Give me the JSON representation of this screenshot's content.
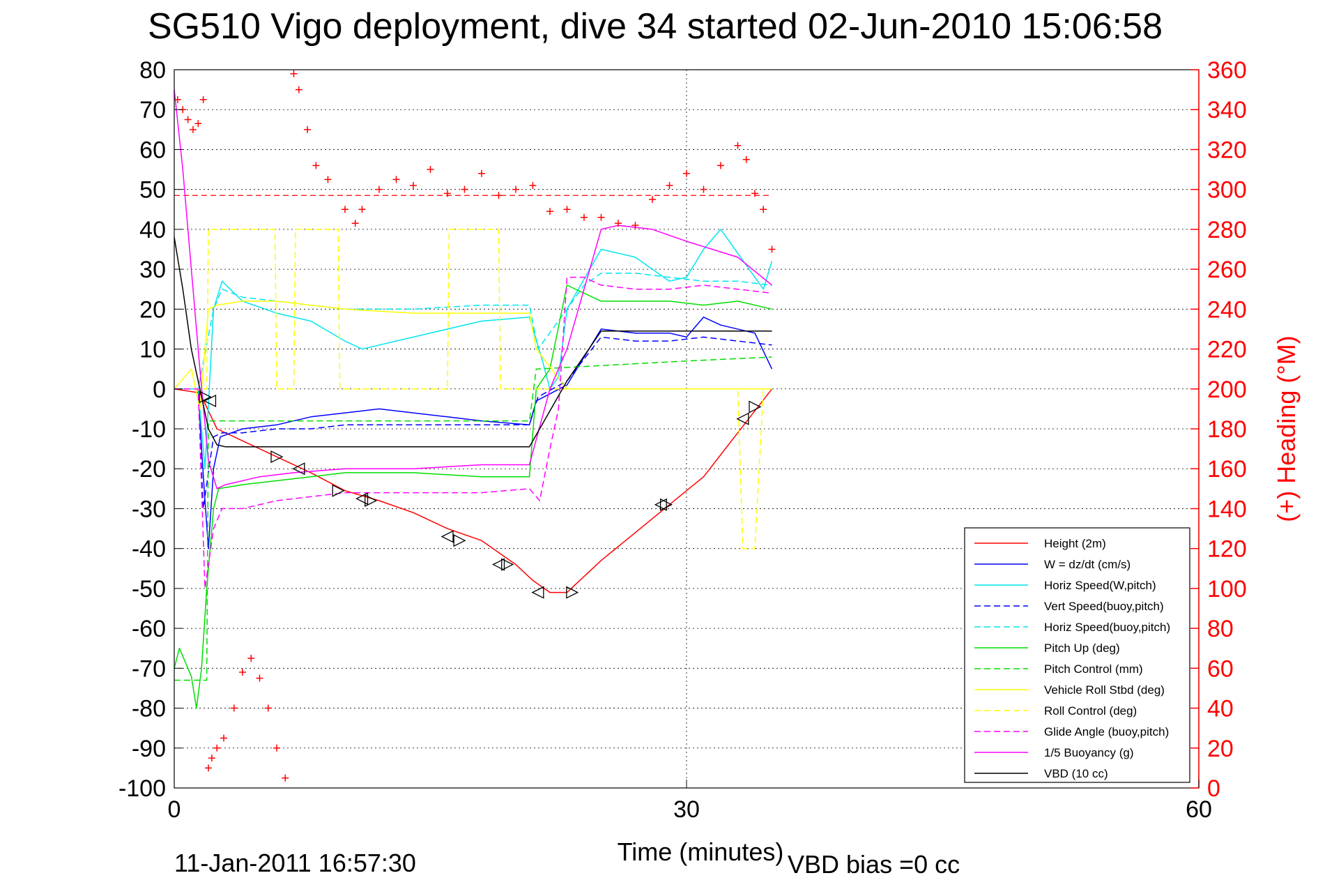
{
  "chart_data": {
    "type": "line",
    "title": "SG510 Vigo deployment, dive 34 started 02-Jun-2010 15:06:58",
    "xlabel": "Time (minutes)",
    "ylabel_right": "(+) Heading (°M)",
    "xlim": [
      0,
      60
    ],
    "ylim": [
      -100,
      80
    ],
    "ylim_right": [
      0,
      360
    ],
    "x_ticks": [
      "0",
      "30",
      "60"
    ],
    "y_ticks": [
      "80",
      "70",
      "60",
      "50",
      "40",
      "30",
      "20",
      "10",
      "0",
      "-10",
      "-20",
      "-30",
      "-40",
      "-50",
      "-60",
      "-70",
      "-80",
      "-90",
      "-100"
    ],
    "y_ticks_right": [
      "360",
      "340",
      "320",
      "300",
      "280",
      "260",
      "240",
      "220",
      "200",
      "180",
      "160",
      "140",
      "120",
      "100",
      "80",
      "60",
      "40",
      "20",
      "0"
    ],
    "grid": true,
    "legend_position": "lower-right",
    "footer_left": "11-Jan-2011 16:57:30",
    "footer_right": "VBD bias =0 cc",
    "heading_reference": 297,
    "series": [
      {
        "name": "Height (2m)",
        "color": "#ff0000",
        "style": "solid",
        "axis": "left",
        "x": [
          0,
          1.5,
          2.5,
          4,
          6,
          8,
          10,
          12,
          14,
          16,
          18,
          20,
          21,
          22,
          23,
          25,
          27,
          29,
          31,
          33,
          35
        ],
        "y": [
          0,
          -1,
          -10,
          -13,
          -17,
          -21,
          -25.5,
          -28,
          -31,
          -35,
          -38,
          -44,
          -48,
          -51,
          -51,
          -43,
          -36,
          -29,
          -22,
          -11,
          0
        ]
      },
      {
        "name": "W = dz/dt (cm/s)",
        "color": "#0000ff",
        "style": "solid",
        "axis": "left",
        "x": [
          0,
          1.4,
          1.6,
          1.8,
          2,
          2.3,
          2.7,
          4,
          6,
          8,
          10,
          12,
          14,
          16,
          18,
          20.8,
          21.2,
          23,
          24,
          25,
          27,
          29,
          30,
          31,
          32,
          34,
          35
        ],
        "y": [
          0,
          0,
          -15,
          -28,
          -40,
          -20,
          -12,
          -10,
          -9,
          -7,
          -6,
          -5,
          -6,
          -7,
          -8,
          -9,
          -3,
          1,
          8,
          15,
          14,
          14,
          13,
          18,
          16,
          14,
          5
        ]
      },
      {
        "name": "Horiz Speed(W,pitch)",
        "color": "#00e5ee",
        "style": "solid",
        "axis": "left",
        "x": [
          0,
          1.4,
          1.8,
          2.3,
          2.8,
          4,
          6,
          8,
          10,
          11,
          12,
          14,
          16,
          18,
          20.8,
          21.5,
          22,
          22.5,
          23,
          25,
          27,
          29,
          30,
          31,
          32,
          33,
          34.5,
          35
        ],
        "y": [
          0,
          0,
          -20,
          20,
          27,
          22,
          19,
          17,
          12,
          10,
          11,
          13,
          15,
          17,
          18,
          8,
          0,
          3,
          20,
          35,
          33,
          27,
          28,
          35,
          40,
          34,
          25,
          32
        ]
      },
      {
        "name": "Vert Speed(buoy,pitch)",
        "color": "#0000ff",
        "style": "dashed",
        "axis": "left",
        "x": [
          0,
          1.4,
          1.7,
          2.3,
          2.8,
          4,
          6,
          8,
          10,
          14,
          18,
          20.8,
          21.3,
          23,
          25,
          27,
          29,
          31,
          33,
          35
        ],
        "y": [
          0,
          0,
          -30,
          -12,
          -11,
          -11,
          -10,
          -10,
          -9,
          -9,
          -9,
          -9,
          -2,
          2,
          13,
          12,
          12,
          13,
          12,
          11
        ]
      },
      {
        "name": "Horiz Speed(buoy,pitch)",
        "color": "#00e5ee",
        "style": "dashed",
        "axis": "left",
        "x": [
          0,
          1.4,
          2.3,
          2.8,
          4,
          6,
          8,
          10,
          14,
          18,
          20.8,
          21.3,
          23,
          24,
          25,
          27,
          29,
          31,
          33,
          35
        ],
        "y": [
          0,
          0,
          20,
          25,
          23,
          22,
          21,
          20,
          20,
          21,
          21,
          10,
          20,
          26,
          29,
          29,
          28,
          27,
          27,
          26
        ]
      },
      {
        "name": "Pitch Up (deg)",
        "color": "#00dd00",
        "style": "solid",
        "axis": "left",
        "x": [
          0,
          0.3,
          1.0,
          1.3,
          1.6,
          1.9,
          2.3,
          2.6,
          4,
          6,
          8,
          10,
          12,
          14,
          18,
          20.8,
          21.2,
          22,
          23,
          25,
          27,
          29,
          31,
          33,
          35
        ],
        "y": [
          -70,
          -65,
          -72,
          -80,
          -70,
          -50,
          -30,
          -25,
          -24,
          -23,
          -22,
          -21,
          -21,
          -21,
          -22,
          -22,
          0,
          5,
          26,
          22,
          22,
          22,
          21,
          22,
          20
        ]
      },
      {
        "name": "Pitch Control (mm)",
        "color": "#00dd00",
        "style": "dashed",
        "axis": "left",
        "x": [
          0,
          1.5,
          1.9,
          2.0,
          20.8,
          21.2,
          30,
          35
        ],
        "y": [
          -73,
          -73,
          -73,
          -8,
          -8,
          5,
          7,
          8
        ]
      },
      {
        "name": "Vehicle Roll Stbd (deg)",
        "color": "#ffff00",
        "style": "solid",
        "axis": "left",
        "x": [
          0,
          1.0,
          1.5,
          2.0,
          2.5,
          4,
          6,
          8,
          10,
          14,
          18,
          20.8,
          21.2,
          23,
          25,
          27,
          29,
          31,
          33,
          35
        ],
        "y": [
          0,
          5,
          -5,
          20,
          21,
          22,
          22,
          21,
          20,
          19,
          19,
          19,
          10,
          0,
          0,
          0,
          0,
          0,
          0,
          0
        ]
      },
      {
        "name": "Roll Control (deg)",
        "color": "#ffff00",
        "style": "dashed",
        "axis": "left",
        "x": [
          0,
          1.9,
          2.0,
          5.9,
          6.0,
          7.0,
          7.1,
          9.6,
          9.7,
          16.0,
          16.1,
          19.0,
          19.1,
          21.0,
          22.0,
          28.0,
          28.1,
          33.0,
          33.3,
          34.0,
          34.5,
          35
        ],
        "y": [
          0,
          0,
          40,
          40,
          0,
          0,
          40,
          40,
          0,
          0,
          40,
          40,
          0,
          0,
          0,
          0,
          0,
          0,
          -40,
          -40,
          0,
          0
        ]
      },
      {
        "name": "Glide Angle (buoy,pitch)",
        "color": "#ff00ff",
        "style": "dashed",
        "axis": "left",
        "x": [
          0,
          1.4,
          1.8,
          2.3,
          2.8,
          4,
          6,
          8,
          10,
          14,
          18,
          20.8,
          21.4,
          22,
          22.5,
          23,
          24,
          25,
          27,
          29,
          31,
          33,
          35
        ],
        "y": [
          0,
          0,
          -50,
          -35,
          -30,
          -30,
          -28,
          -27,
          -26,
          -26,
          -26,
          -25,
          -28,
          -15,
          -5,
          28,
          28,
          26,
          25,
          25,
          26,
          25,
          24
        ]
      },
      {
        "name": "1/5 Buoyancy (g)",
        "color": "#ff00ff",
        "style": "solid",
        "axis": "left",
        "x": [
          0,
          0.5,
          1.0,
          1.5,
          2.0,
          2.5,
          3,
          5,
          7,
          10,
          14,
          18,
          20.8,
          22,
          23,
          25,
          26,
          28,
          30,
          33,
          35
        ],
        "y": [
          75,
          55,
          30,
          5,
          -18,
          -25,
          -24,
          -22,
          -21,
          -20,
          -20,
          -19,
          -19,
          0,
          10,
          40,
          41,
          40,
          37,
          33,
          26
        ]
      },
      {
        "name": "VBD (10 cc)",
        "color": "#000000",
        "style": "solid",
        "axis": "left",
        "x": [
          0,
          0.5,
          1.0,
          1.5,
          2.0,
          2.5,
          3,
          20.8,
          23,
          25,
          35
        ],
        "y": [
          38,
          25,
          10,
          0,
          -10,
          -14,
          -14.5,
          -14.5,
          2,
          14.5,
          14.5
        ]
      },
      {
        "name": "(+) Heading",
        "color": "#ff0000",
        "style": "markers",
        "axis": "right",
        "x": [
          0.2,
          0.5,
          0.8,
          1.1,
          1.4,
          1.7,
          2.0,
          2.2,
          2.5,
          2.9,
          3.5,
          4.0,
          4.5,
          5.0,
          5.5,
          6.0,
          6.5,
          7.0,
          7.3,
          7.8,
          8.3,
          9.0,
          10.0,
          10.6,
          11.0,
          12.0,
          13.0,
          14.0,
          15.0,
          16.0,
          17.0,
          18.0,
          19.0,
          20.0,
          21.0,
          22.0,
          23.0,
          24.0,
          25.0,
          26.0,
          27.0,
          28.0,
          29.0,
          30.0,
          31.0,
          32.0,
          33.0,
          33.5,
          34.0,
          34.5,
          35.0
        ],
        "y": [
          345,
          340,
          335,
          330,
          333,
          345,
          10,
          15,
          20,
          25,
          40,
          58,
          65,
          55,
          40,
          20,
          5,
          358,
          350,
          330,
          312,
          305,
          290,
          283,
          290,
          300,
          305,
          302,
          310,
          298,
          300,
          308,
          297,
          300,
          302,
          289,
          290,
          286,
          286,
          283,
          282,
          295,
          302,
          308,
          300,
          312,
          322,
          315,
          298,
          290,
          270
        ]
      },
      {
        "name": "Roll markers",
        "color": "#000000",
        "style": "triangles",
        "axis": "left",
        "x": [
          1.8,
          2.1,
          6.0,
          7.3,
          9.6,
          11.0,
          11.5,
          16.0,
          16.7,
          19.0,
          19.5,
          21.3,
          23.3,
          28.5,
          28.8,
          33.3,
          34.0
        ],
        "y": [
          -2,
          -3,
          -17,
          -20,
          -25.5,
          -27.5,
          -28,
          -37,
          -38,
          -44,
          -44,
          -51,
          -51,
          -29,
          -29,
          -7.5,
          -4.5
        ]
      }
    ]
  }
}
